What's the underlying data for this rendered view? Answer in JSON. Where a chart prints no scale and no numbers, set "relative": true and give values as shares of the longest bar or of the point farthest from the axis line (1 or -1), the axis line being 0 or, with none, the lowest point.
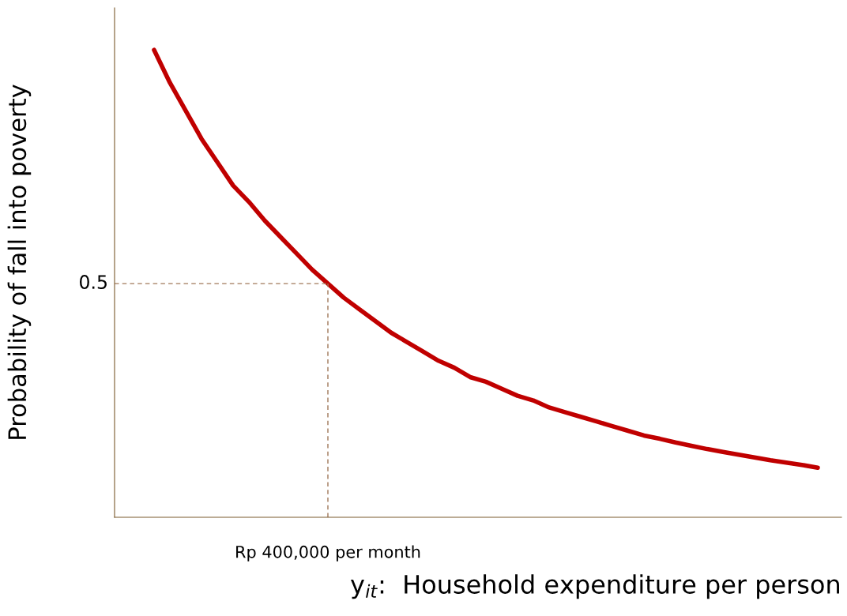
{
  "chart_data": {
    "type": "line",
    "relative": true,
    "xlabel": "y$_{it}$:  Household expenditure per person",
    "ylabel": "Probability of fall into poverty",
    "categories": [
      null,
      null,
      null,
      null,
      null,
      null,
      null,
      null,
      null,
      null,
      null,
      null,
      null,
      null,
      null,
      null,
      null,
      null,
      null,
      null,
      null,
      null,
      null,
      null,
      null,
      null,
      null,
      null,
      null,
      null,
      null,
      null,
      null,
      null,
      null,
      null,
      null,
      null,
      null,
      null,
      null,
      null,
      null
    ],
    "series": [
      {
        "color": "#c00000",
        "values": [
          1.0,
          0.93,
          0.87,
          0.81,
          0.76,
          0.71,
          0.675,
          0.635,
          0.6,
          0.565,
          0.53,
          0.5,
          0.47,
          0.445,
          0.42,
          0.395,
          0.375,
          0.355,
          0.335,
          0.32,
          0.3,
          0.29,
          0.275,
          0.26,
          0.25,
          0.235,
          0.225,
          0.215,
          0.205,
          0.195,
          0.185,
          0.175,
          0.168,
          0.16,
          0.153,
          0.146,
          0.14,
          0.134,
          0.128,
          0.122,
          0.117,
          0.112,
          0.106
        ]
      }
    ],
    "ref_lines": [
      {
        "axis": "y",
        "value": 0.5,
        "label": "0.5",
        "color": "#a0785a",
        "line_style": "dashed"
      }
    ],
    "annotations": [
      "Rp 400,000 per month"
    ],
    "legend": false
  }
}
